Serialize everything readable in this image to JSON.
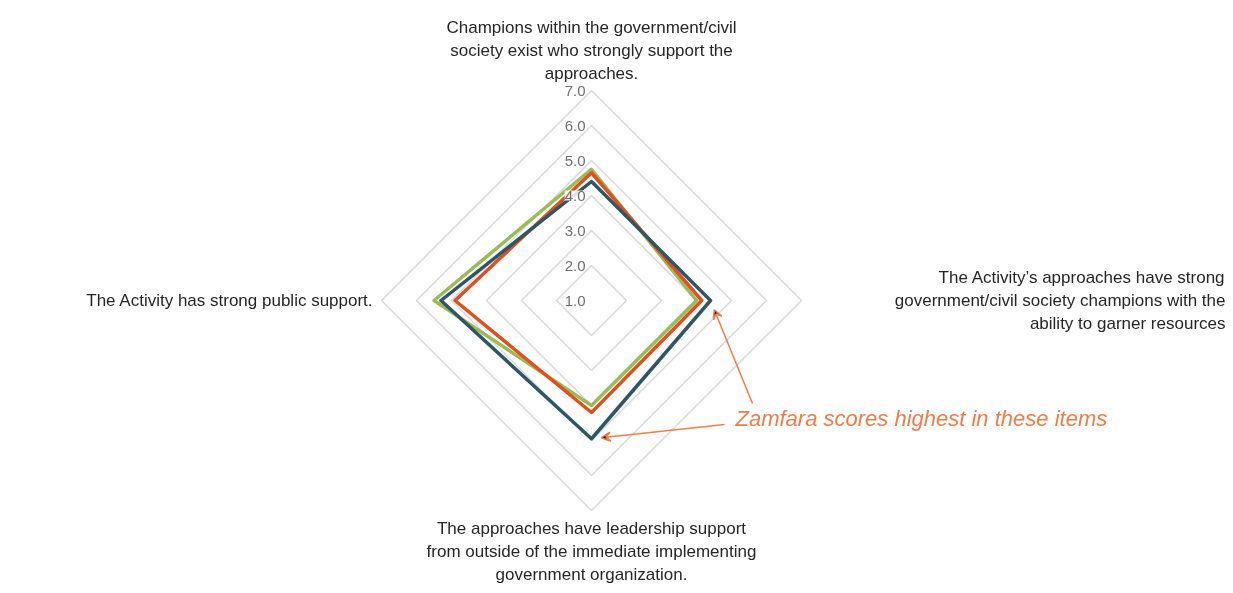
{
  "chart_data": {
    "type": "radar",
    "categories": [
      "Champions within the government/civil society exist who strongly support the approaches.",
      "The Activity’s approaches have strong government/civil society champions with the ability to garner resources",
      "The approaches have leadership support from outside of the immediate implementing government organization.",
      "The Activity has strong public support."
    ],
    "series": [
      {
        "color": "#9bbb59",
        "values": [
          4.75,
          4.0,
          4.0,
          5.5
        ]
      },
      {
        "color": "#e0501e",
        "values": [
          4.65,
          4.15,
          4.2,
          4.9
        ]
      },
      {
        "color": "#2e5666",
        "values": [
          4.4,
          4.4,
          4.95,
          5.3
        ]
      }
    ],
    "ylim": [
      1,
      7
    ],
    "yticks": [
      {
        "value": 1,
        "label": "1.0"
      },
      {
        "value": 2,
        "label": "2.0"
      },
      {
        "value": 3,
        "label": "3.0"
      },
      {
        "value": 4,
        "label": "4.0"
      },
      {
        "value": 5,
        "label": "5.0"
      },
      {
        "value": 6,
        "label": "6.0"
      },
      {
        "value": 7,
        "label": "7.0"
      }
    ],
    "grid": true,
    "annotations": [
      "Zamfara scores highest in these items"
    ]
  }
}
